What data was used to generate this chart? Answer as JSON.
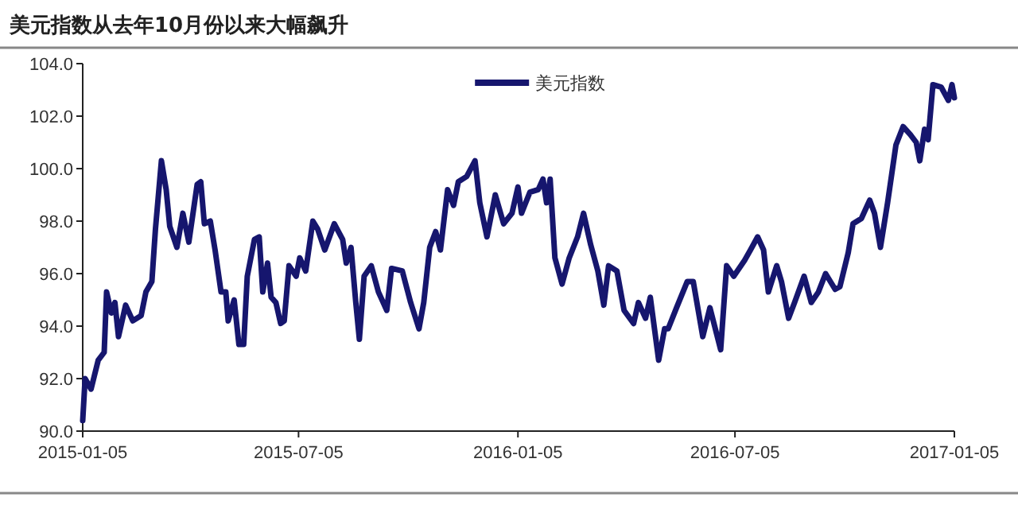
{
  "chart_data": {
    "type": "line",
    "title": "美元指数从去年10月份以来大幅飙升",
    "x": [
      "2015-01-05",
      "2015-01-07",
      "2015-01-12",
      "2015-01-18",
      "2015-01-23",
      "2015-01-25",
      "2015-01-29",
      "2015-02-01",
      "2015-02-04",
      "2015-02-10",
      "2015-02-16",
      "2015-02-23",
      "2015-02-27",
      "2015-03-04",
      "2015-03-07",
      "2015-03-12",
      "2015-03-16",
      "2015-03-19",
      "2015-03-25",
      "2015-03-30",
      "2015-04-04",
      "2015-04-11",
      "2015-04-14",
      "2015-04-17",
      "2015-04-22",
      "2015-04-26",
      "2015-05-01",
      "2015-05-05",
      "2015-05-07",
      "2015-05-12",
      "2015-05-16",
      "2015-05-20",
      "2015-05-23",
      "2015-05-29",
      "2015-06-02",
      "2015-06-05",
      "2015-06-09",
      "2015-06-12",
      "2015-06-16",
      "2015-06-20",
      "2015-06-23",
      "2015-06-27",
      "2015-07-03",
      "2015-07-06",
      "2015-07-11",
      "2015-07-17",
      "2015-07-21",
      "2015-07-27",
      "2015-08-04",
      "2015-08-11",
      "2015-08-14",
      "2015-08-18",
      "2015-08-22",
      "2015-08-25",
      "2015-08-29",
      "2015-09-04",
      "2015-09-10",
      "2015-09-17",
      "2015-09-21",
      "2015-09-30",
      "2015-10-07",
      "2015-10-14",
      "2015-10-18",
      "2015-10-23",
      "2015-10-28",
      "2015-11-01",
      "2015-11-07",
      "2015-11-12",
      "2015-11-16",
      "2015-11-23",
      "2015-11-30",
      "2015-12-04",
      "2015-12-10",
      "2015-12-17",
      "2015-12-24",
      "2015-12-31",
      "2016-01-05",
      "2016-01-08",
      "2016-01-15",
      "2016-01-22",
      "2016-01-26",
      "2016-01-29",
      "2016-02-01",
      "2016-02-05",
      "2016-02-11",
      "2016-02-17",
      "2016-02-24",
      "2016-02-29",
      "2016-03-06",
      "2016-03-12",
      "2016-03-17",
      "2016-03-21",
      "2016-03-28",
      "2016-04-03",
      "2016-04-11",
      "2016-04-15",
      "2016-04-21",
      "2016-04-25",
      "2016-05-02",
      "2016-05-07",
      "2016-05-10",
      "2016-05-17",
      "2016-05-26",
      "2016-05-31",
      "2016-06-08",
      "2016-06-14",
      "2016-06-23",
      "2016-06-28",
      "2016-07-04",
      "2016-07-13",
      "2016-07-18",
      "2016-07-24",
      "2016-07-29",
      "2016-08-02",
      "2016-08-09",
      "2016-08-13",
      "2016-08-19",
      "2016-08-24",
      "2016-09-01",
      "2016-09-07",
      "2016-09-13",
      "2016-09-19",
      "2016-09-27",
      "2016-10-01",
      "2016-10-08",
      "2016-10-12",
      "2016-10-19",
      "2016-10-26",
      "2016-10-30",
      "2016-11-04",
      "2016-11-10",
      "2016-11-17",
      "2016-11-23",
      "2016-11-29",
      "2016-12-04",
      "2016-12-07",
      "2016-12-11",
      "2016-12-14",
      "2016-12-18",
      "2016-12-25",
      "2016-12-31",
      "2017-01-03",
      "2017-01-05"
    ],
    "series": [
      {
        "name": "美元指数",
        "color": "#16166e",
        "values": [
          90.4,
          92.0,
          91.6,
          92.7,
          93.0,
          95.3,
          94.5,
          94.9,
          93.6,
          94.8,
          94.2,
          94.4,
          95.3,
          95.7,
          97.7,
          100.3,
          99.2,
          97.8,
          97.0,
          98.3,
          97.2,
          99.4,
          99.5,
          97.9,
          98.0,
          96.9,
          95.3,
          95.3,
          94.2,
          95.0,
          93.3,
          93.3,
          95.9,
          97.3,
          97.4,
          95.3,
          96.4,
          95.1,
          94.9,
          94.1,
          94.2,
          96.3,
          95.9,
          96.6,
          96.1,
          98.0,
          97.7,
          96.9,
          97.9,
          97.3,
          96.4,
          97.0,
          94.9,
          93.5,
          95.9,
          96.3,
          95.3,
          94.6,
          96.2,
          96.1,
          94.9,
          93.9,
          94.9,
          97.0,
          97.6,
          96.9,
          99.2,
          98.6,
          99.5,
          99.7,
          100.3,
          98.7,
          97.4,
          99.0,
          97.9,
          98.3,
          99.3,
          98.3,
          99.1,
          99.2,
          99.6,
          98.7,
          99.6,
          96.6,
          95.6,
          96.6,
          97.4,
          98.3,
          97.1,
          96.1,
          94.8,
          96.3,
          96.1,
          94.6,
          94.1,
          94.9,
          94.3,
          95.1,
          92.7,
          93.9,
          93.9,
          94.7,
          95.7,
          95.7,
          93.6,
          94.7,
          93.1,
          96.3,
          95.9,
          96.5,
          96.9,
          97.4,
          96.9,
          95.3,
          96.3,
          95.7,
          94.3,
          94.9,
          95.9,
          94.9,
          95.3,
          96.0,
          95.4,
          95.5,
          96.8,
          97.9,
          98.1,
          98.8,
          98.3,
          97.0,
          98.7,
          100.9,
          101.6,
          101.3,
          101.0,
          100.3,
          101.5,
          101.1,
          103.2,
          103.1,
          102.6,
          103.2,
          102.7
        ]
      }
    ],
    "xlim": [
      "2015-01-05",
      "2017-01-05"
    ],
    "xticks": [
      {
        "value": "2015-01-05",
        "label": "2015-01-05"
      },
      {
        "value": "2015-07-05",
        "label": "2015-07-05"
      },
      {
        "value": "2016-01-05",
        "label": "2016-01-05"
      },
      {
        "value": "2016-07-05",
        "label": "2016-07-05"
      },
      {
        "value": "2017-01-05",
        "label": "2017-01-05"
      }
    ],
    "ylim": [
      90,
      104
    ],
    "yticks": [
      {
        "value": 90,
        "label": "90.0"
      },
      {
        "value": 92,
        "label": "92.0"
      },
      {
        "value": 94,
        "label": "94.0"
      },
      {
        "value": 96,
        "label": "96.0"
      },
      {
        "value": 98,
        "label": "98.0"
      },
      {
        "value": 100,
        "label": "100.0"
      },
      {
        "value": 102,
        "label": "102.0"
      },
      {
        "value": 104,
        "label": "104.0"
      }
    ],
    "legend": "top",
    "grid": false,
    "marker": "none",
    "line_style": "solid"
  }
}
